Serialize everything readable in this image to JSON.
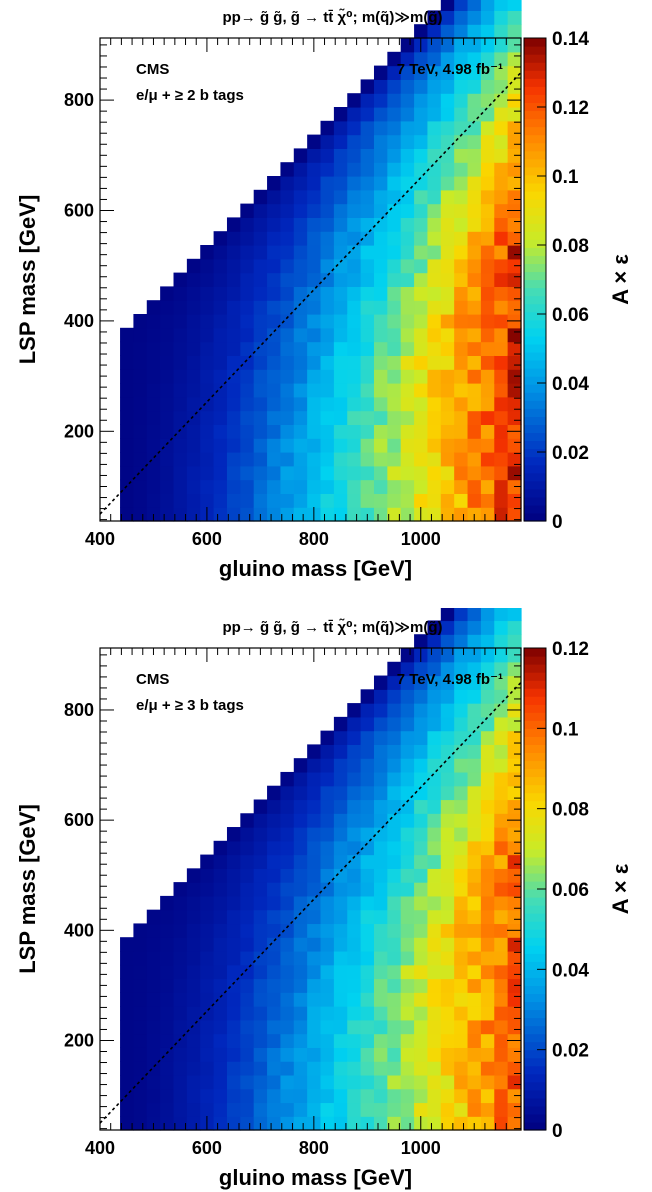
{
  "chart_data": [
    {
      "type": "heatmap",
      "title": "pp→ g̃ g̃, g̃ → tt̄ χ̃⁰; m(q̃)≫m(g̃)",
      "xlabel": "gluino mass [GeV]",
      "ylabel": "LSP mass [GeV]",
      "zlabel": "A × ε",
      "xlim": [
        400,
        1187.5
      ],
      "ylim": [
        37.5,
        912.5
      ],
      "zlim": [
        0,
        0.14
      ],
      "x_ticks": [
        "400",
        "600",
        "800",
        "1000"
      ],
      "y_ticks": [
        "200",
        "400",
        "600",
        "800"
      ],
      "z_ticks": [
        "0",
        "0.02",
        "0.04",
        "0.06",
        "0.08",
        "0.1",
        "0.12",
        "0.14"
      ],
      "annotations": [
        "CMS",
        "7 TeV, 4.98 fb⁻¹",
        "e/μ + ≥ 2 b tags"
      ],
      "cell_size": 25,
      "efficiency_at_max_gluino": {
        "low_lsp": 0.125,
        "mid_lsp": 0.07,
        "near_diagonal": 0.005
      },
      "outliers": [
        {
          "x": 950,
          "y": 262.5,
          "value": 0.04
        },
        {
          "x": 925,
          "y": 362.5,
          "value": 0.035
        }
      ]
    },
    {
      "type": "heatmap",
      "title": "pp→ g̃ g̃, g̃ → tt̄ χ̃⁰; m(q̃)≫m(g̃)",
      "xlabel": "gluino mass [GeV]",
      "ylabel": "LSP mass [GeV]",
      "zlabel": "A × ε",
      "xlim": [
        400,
        1187.5
      ],
      "ylim": [
        37.5,
        912.5
      ],
      "zlim": [
        0,
        0.12
      ],
      "x_ticks": [
        "400",
        "600",
        "800",
        "1000"
      ],
      "y_ticks": [
        "200",
        "400",
        "600",
        "800"
      ],
      "z_ticks": [
        "0",
        "0.02",
        "0.04",
        "0.06",
        "0.08",
        "0.1",
        "0.12"
      ],
      "annotations": [
        "CMS",
        "7 TeV, 4.98 fb⁻¹",
        "e/μ + ≥ 3 b tags"
      ],
      "cell_size": 25,
      "efficiency_at_max_gluino": {
        "low_lsp": 0.1,
        "mid_lsp": 0.085,
        "near_diagonal": 0.005
      },
      "outliers": []
    }
  ]
}
